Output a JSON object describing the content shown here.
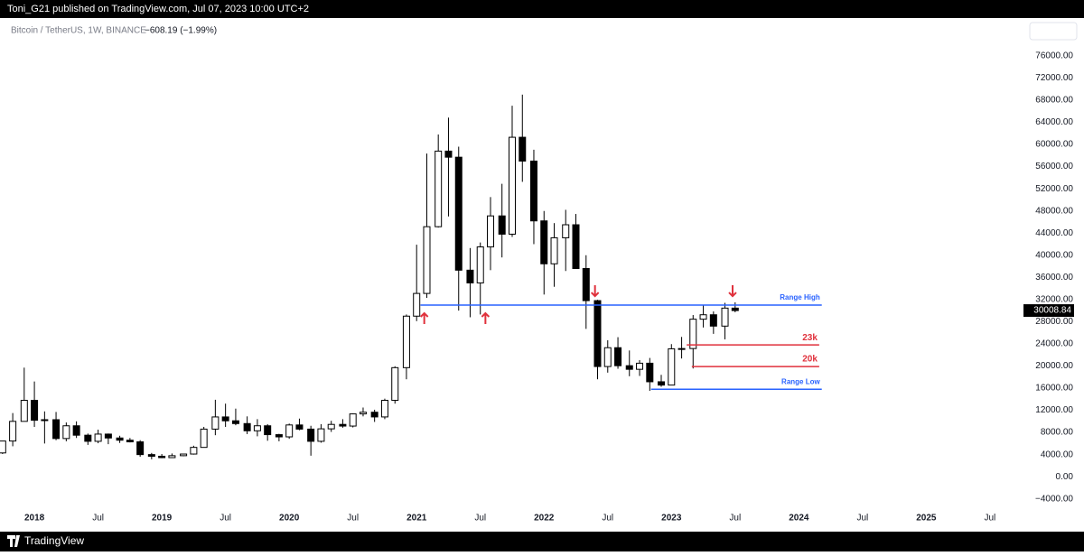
{
  "header": {
    "publisher_line": "Toni_G21 published on TradingView.com, Jul 07, 2023 10:00 UTC+2"
  },
  "footer": {
    "brand": "TradingView"
  },
  "chart_data": {
    "type": "candlestick",
    "symbol": "Bitcoin / TetherUS, 1W, BINANCE",
    "change": "−608.19 (−1.99%)",
    "up_color": "#ffffff",
    "down_color": "#000000",
    "outline_color": "#000000",
    "x": [
      2017.75,
      2017.83,
      2017.92,
      2018.0,
      2018.08,
      2018.17,
      2018.25,
      2018.33,
      2018.42,
      2018.5,
      2018.58,
      2018.67,
      2018.75,
      2018.83,
      2018.92,
      2019.0,
      2019.08,
      2019.17,
      2019.25,
      2019.33,
      2019.42,
      2019.5,
      2019.58,
      2019.67,
      2019.75,
      2019.83,
      2019.92,
      2020.0,
      2020.08,
      2020.17,
      2020.25,
      2020.33,
      2020.42,
      2020.5,
      2020.58,
      2020.67,
      2020.75,
      2020.83,
      2020.92,
      2021.0,
      2021.08,
      2021.17,
      2021.25,
      2021.33,
      2021.42,
      2021.5,
      2021.58,
      2021.67,
      2021.75,
      2021.83,
      2021.92,
      2022.0,
      2022.08,
      2022.17,
      2022.25,
      2022.33,
      2022.42,
      2022.5,
      2022.58,
      2022.67,
      2022.75,
      2022.83,
      2022.92,
      2023.0,
      2023.08,
      2023.17,
      2023.25,
      2023.33,
      2023.42,
      2023.5
    ],
    "open": [
      4300,
      6450,
      10000,
      13800,
      10200,
      10300,
      6900,
      9200,
      7500,
      6400,
      7700,
      7000,
      6600,
      6300,
      4000,
      3700,
      3450,
      3800,
      4100,
      5300,
      8600,
      10800,
      10100,
      9600,
      8300,
      9200,
      7600,
      7200,
      9350,
      8600,
      6400,
      8650,
      9450,
      9150,
      11350,
      11650,
      10800,
      13800,
      19700,
      29000,
      33100,
      45150,
      58800,
      57700,
      37300,
      35000,
      41500,
      47100,
      43800,
      61300,
      57000,
      46200,
      38450,
      43150,
      45500,
      37600,
      31800,
      19900,
      23300,
      20050,
      19400,
      20500,
      17150,
      16550,
      23100,
      23150,
      28450,
      29250,
      27200,
      30450
    ],
    "high": [
      6470,
      11500,
      19700,
      17200,
      11800,
      11700,
      9800,
      10000,
      7800,
      8500,
      7800,
      7400,
      7000,
      6600,
      4300,
      4100,
      4200,
      4100,
      5600,
      9000,
      13900,
      13200,
      12300,
      10900,
      10400,
      9500,
      7750,
      9600,
      10500,
      9200,
      9500,
      10100,
      10400,
      11450,
      12500,
      12100,
      14100,
      19950,
      29300,
      41900,
      58350,
      61800,
      64850,
      59600,
      41300,
      42300,
      50500,
      52900,
      67000,
      69000,
      59050,
      47990,
      45800,
      48200,
      47450,
      40000,
      31950,
      24650,
      25200,
      22800,
      21050,
      21450,
      18400,
      23950,
      25250,
      29200,
      31000,
      29850,
      31400,
      31500
    ],
    "low": [
      4100,
      5500,
      10400,
      9000,
      6000,
      6600,
      6400,
      7000,
      5750,
      6050,
      5880,
      6100,
      6200,
      3600,
      3150,
      3350,
      3400,
      3700,
      4000,
      5300,
      7500,
      9000,
      9300,
      7700,
      7300,
      6500,
      6400,
      6850,
      8400,
      3800,
      6150,
      8100,
      8850,
      8900,
      10900,
      9900,
      10400,
      13200,
      17600,
      28100,
      32300,
      45000,
      47000,
      30000,
      28800,
      29300,
      37300,
      39600,
      43300,
      53250,
      42000,
      32900,
      34300,
      37150,
      37600,
      26700,
      17600,
      18800,
      19500,
      18150,
      18200,
      15500,
      16250,
      16500,
      21350,
      19550,
      26950,
      25800,
      24800,
      29700
    ],
    "close": [
      6450,
      10000,
      13800,
      10200,
      10300,
      6900,
      9200,
      7500,
      6400,
      7700,
      7000,
      6600,
      6300,
      4000,
      3700,
      3450,
      3800,
      4100,
      5300,
      8600,
      10800,
      10100,
      9600,
      8300,
      9200,
      7600,
      7200,
      9350,
      8600,
      6400,
      8650,
      9450,
      9150,
      11350,
      11650,
      10800,
      13800,
      19700,
      29000,
      33100,
      45150,
      58800,
      57700,
      37300,
      35000,
      41500,
      47100,
      43800,
      61300,
      57000,
      46200,
      38450,
      43150,
      45500,
      37600,
      31800,
      19900,
      23300,
      20050,
      19400,
      20500,
      17150,
      16550,
      23100,
      23150,
      28450,
      29250,
      27200,
      30450,
      30008.84
    ],
    "xlim": [
      2017.73,
      2025.6
    ],
    "xticks": [
      2018,
      {
        "value": 2018.5,
        "label": "Jul"
      },
      2019,
      {
        "value": 2019.5,
        "label": "Jul"
      },
      2020,
      {
        "value": 2020.5,
        "label": "Jul"
      },
      2021,
      {
        "value": 2021.5,
        "label": "Jul"
      },
      2022,
      {
        "value": 2022.5,
        "label": "Jul"
      },
      2023,
      {
        "value": 2023.5,
        "label": "Jul"
      },
      2024,
      {
        "value": 2024.5,
        "label": "Jul"
      },
      2025,
      {
        "value": 2025.5,
        "label": "Jul"
      }
    ],
    "ylim": [
      -6000,
      82500
    ],
    "yticks": [
      {
        "value": -4000,
        "label": "−4000.00"
      },
      {
        "value": 0,
        "label": "0.00"
      },
      {
        "value": 4000,
        "label": "4000.00"
      },
      {
        "value": 8000,
        "label": "8000.00"
      },
      {
        "value": 12000,
        "label": "12000.00"
      },
      {
        "value": 16000,
        "label": "16000.00"
      },
      {
        "value": 20000,
        "label": "20000.00"
      },
      {
        "value": 24000,
        "label": "24000.00"
      },
      {
        "value": 28000,
        "label": "28000.00"
      },
      {
        "value": 32000,
        "label": "32000.00"
      },
      {
        "value": 36000,
        "label": "36000.00"
      },
      {
        "value": 40000,
        "label": "40000.00"
      },
      {
        "value": 44000,
        "label": "44000.00"
      },
      {
        "value": 48000,
        "label": "48000.00"
      },
      {
        "value": 52000,
        "label": "52000.00"
      },
      {
        "value": 56000,
        "label": "56000.00"
      },
      {
        "value": 60000,
        "label": "60000.00"
      },
      {
        "value": 64000,
        "label": "64000.00"
      },
      {
        "value": 68000,
        "label": "68000.00"
      },
      {
        "value": 72000,
        "label": "72000.00"
      },
      {
        "value": 76000,
        "label": "76000.00"
      }
    ],
    "levels": [
      {
        "label": "Range High",
        "value": 31000,
        "x0": 2021.03,
        "x1": 2024.18,
        "color": "#2962ff"
      },
      {
        "label": "23k",
        "value": 23800,
        "x0": 2023.12,
        "x1": 2024.16,
        "color": "#e0313c"
      },
      {
        "label": "20k",
        "value": 19900,
        "x0": 2023.16,
        "x1": 2024.16,
        "color": "#e0313c"
      },
      {
        "label": "Range Low",
        "value": 15800,
        "x0": 2022.84,
        "x1": 2024.18,
        "color": "#2962ff"
      }
    ],
    "arrows": [
      {
        "direction": "up",
        "x": 2021.06,
        "y": 28550,
        "color": "#e0313c"
      },
      {
        "direction": "up",
        "x": 2021.54,
        "y": 28550,
        "color": "#e0313c"
      },
      {
        "direction": "down",
        "x": 2022.4,
        "y": 33600,
        "color": "#e0313c"
      },
      {
        "direction": "down",
        "x": 2023.48,
        "y": 33600,
        "color": "#e0313c"
      }
    ]
  }
}
